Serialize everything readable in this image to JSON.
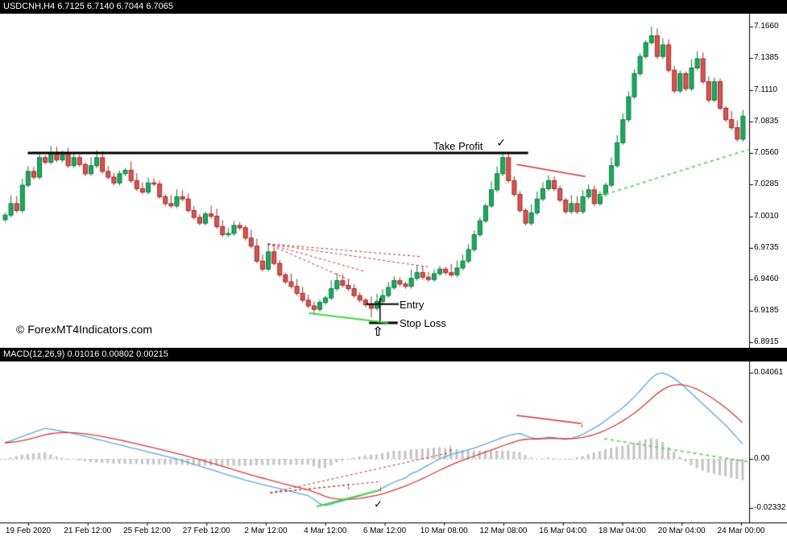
{
  "price_pane": {
    "header": "USDCNH,H4  6.7125 6.7140 6.7044 6.7065",
    "watermark": "© ForexMT4Indicators.com",
    "axis_labels": [
      "7.1660",
      "7.1385",
      "7.1110",
      "7.0835",
      "7.0560",
      "7.0285",
      "7.0010",
      "6.9735",
      "6.9460",
      "6.9185",
      "6.8915"
    ]
  },
  "macd_pane": {
    "header": "MACD(12,26,9)  0.01016 0.00802 0.00215",
    "axis_labels": [
      "0.04061",
      "0.00",
      "-0.02332"
    ]
  },
  "time_axis": {
    "labels": [
      "19 Feb 2020",
      "21 Feb 12:00",
      "25 Feb 12:00",
      "27 Feb 12:00",
      "2 Mar 12:00",
      "4 Mar 12:00",
      "6 Mar 12:00",
      "10 Mar 08:00",
      "12 Mar 08:00",
      "16 Mar 04:00",
      "18 Mar 04:00",
      "20 Mar 04:00",
      "24 Mar 00:00"
    ]
  },
  "annotations": {
    "take_profit": "Take Profit",
    "entry": "Entry",
    "stop_loss": "Stop Loss"
  },
  "colors": {
    "bull": "#1caa5c",
    "bull_border": "#0c7a40",
    "bear": "#d9534f",
    "bear_border": "#9e2b2b",
    "macd_line": "#5aa7de",
    "signal_line": "#d23b3b",
    "histogram": "#c4c4c4",
    "zero_line": "#bbbbbb",
    "divergence_red": "#c03030",
    "divergence_green": "#44d344",
    "projection_green": "#66dd66",
    "annotation": "#000000"
  },
  "chart_data": [
    {
      "type": "candlestick",
      "title": "USDCNH H4",
      "y_axis": {
        "min": 6.8915,
        "max": 7.166,
        "ticks": [
          7.166,
          7.1385,
          7.111,
          7.0835,
          7.056,
          7.0285,
          7.001,
          6.9735,
          6.946,
          6.9185,
          6.8915
        ]
      },
      "first_open": 6.998,
      "closes": [
        7.002,
        7.012,
        7.006,
        7.028,
        7.04,
        7.035,
        7.052,
        7.048,
        7.055,
        7.05,
        7.056,
        7.045,
        7.052,
        7.046,
        7.038,
        7.045,
        7.052,
        7.04,
        7.035,
        7.03,
        7.038,
        7.041,
        7.032,
        7.025,
        7.022,
        7.03,
        7.029,
        7.018,
        7.012,
        7.01,
        7.018,
        7.016,
        7.006,
        7.0,
        6.995,
        7.003,
        7.001,
        6.992,
        6.985,
        6.986,
        6.993,
        6.991,
        6.982,
        6.975,
        6.962,
        6.955,
        6.97,
        6.96,
        6.95,
        6.944,
        6.94,
        6.934,
        6.928,
        6.923,
        6.92,
        6.926,
        6.93,
        6.938,
        6.945,
        6.941,
        6.938,
        6.932,
        6.928,
        6.924,
        6.921,
        6.927,
        6.932,
        6.939,
        6.945,
        6.942,
        6.94,
        6.947,
        6.952,
        6.948,
        6.946,
        6.951,
        6.955,
        6.952,
        6.95,
        6.956,
        6.962,
        6.972,
        6.985,
        6.997,
        7.01,
        7.024,
        7.038,
        7.052,
        7.032,
        7.02,
        7.006,
        6.995,
        7.004,
        7.016,
        7.025,
        7.032,
        7.025,
        7.015,
        7.005,
        7.012,
        7.005,
        7.018,
        7.024,
        7.012,
        7.02,
        7.028,
        7.045,
        7.065,
        7.085,
        7.105,
        7.125,
        7.14,
        7.152,
        7.158,
        7.14,
        7.15,
        7.128,
        7.11,
        7.125,
        7.112,
        7.13,
        7.138,
        7.118,
        7.102,
        7.118,
        7.095,
        7.085,
        7.078,
        7.068,
        7.088
      ],
      "high_overrides": {
        "10": 7.058,
        "46": 6.977,
        "87": 7.057,
        "113": 7.166
      },
      "low_overrides": {
        "54": 6.915,
        "64": 6.913
      },
      "trade_levels": {
        "take_profit": 7.056,
        "entry": 6.9245,
        "stop_loss": 6.9083
      }
    },
    {
      "type": "line",
      "title": "MACD(12,26,9)",
      "current_values": {
        "macd": 0.01016,
        "signal": 0.00802,
        "histogram": 0.00215
      },
      "y_ticks": [
        0.04061,
        0,
        -0.02332
      ],
      "signal_ema_period": 9,
      "macd_values": [
        0.0076,
        0.0085,
        0.0095,
        0.0105,
        0.0115,
        0.0125,
        0.0134,
        0.0144,
        0.014,
        0.0135,
        0.013,
        0.0125,
        0.012,
        0.0113,
        0.0107,
        0.01,
        0.0093,
        0.0087,
        0.008,
        0.0073,
        0.0067,
        0.006,
        0.0053,
        0.0047,
        0.004,
        0.0033,
        0.0027,
        0.002,
        0.0013,
        0.0007,
        0.0,
        -0.0008,
        -0.0017,
        -0.0025,
        -0.0033,
        -0.0042,
        -0.005,
        -0.0058,
        -0.0067,
        -0.0075,
        -0.0083,
        -0.0092,
        -0.01,
        -0.0107,
        -0.0113,
        -0.012,
        -0.0127,
        -0.0133,
        -0.014,
        -0.0147,
        -0.0153,
        -0.016,
        -0.0167,
        -0.0173,
        -0.019,
        -0.021,
        -0.022,
        -0.0215,
        -0.0205,
        -0.02,
        -0.019,
        -0.0183,
        -0.0175,
        -0.0166,
        -0.0158,
        -0.015,
        -0.0138,
        -0.0124,
        -0.011,
        -0.01,
        -0.009,
        -0.007,
        -0.006,
        -0.0045,
        -0.003,
        -0.0015,
        0.0,
        0.001,
        0.002,
        0.0028,
        0.0035,
        0.0043,
        0.005,
        0.006,
        0.007,
        0.008,
        0.009,
        0.01,
        0.011,
        0.0115,
        0.012,
        0.011,
        0.01,
        0.0095,
        0.0098,
        0.0102,
        0.01,
        0.0095,
        0.0092,
        0.0096,
        0.0105,
        0.0115,
        0.013,
        0.0145,
        0.016,
        0.018,
        0.02,
        0.022,
        0.024,
        0.0265,
        0.029,
        0.032,
        0.035,
        0.038,
        0.04,
        0.0406,
        0.0395,
        0.038,
        0.036,
        0.0335,
        0.031,
        0.0285,
        0.026,
        0.0235,
        0.021,
        0.0185,
        0.016,
        0.013,
        0.01,
        0.007
      ]
    }
  ],
  "drawings": {
    "lines": [
      {
        "name": "take-profit-line",
        "pane": "price",
        "color": "#000000",
        "width": 3,
        "from": [
          4,
          7.056
        ],
        "to": [
          91.5,
          7.056
        ]
      },
      {
        "name": "entry-line",
        "pane": "price",
        "color": "#000000",
        "width": 2,
        "from": [
          63.2,
          6.9245
        ],
        "to": [
          68.9,
          6.9245
        ]
      },
      {
        "name": "stop-loss-line",
        "pane": "price",
        "color": "#000000",
        "width": 3,
        "from": [
          63.7,
          6.9083
        ],
        "to": [
          68.7,
          6.9083
        ]
      },
      {
        "name": "entry-connector-line",
        "pane": "price",
        "color": "#000000",
        "width": 1.5,
        "from": [
          65.6,
          6.93
        ],
        "to": [
          65.6,
          6.9083
        ]
      },
      {
        "name": "price-divergence-support",
        "pane": "price",
        "color": "#44d344",
        "width": 2,
        "from": [
          53.2,
          6.9167
        ],
        "to": [
          67,
          6.9083
        ]
      },
      {
        "name": "price-projection",
        "pane": "price",
        "color": "#66dd66",
        "width": 2,
        "dash": [
          4,
          4
        ],
        "from": [
          104,
          7.0185
        ],
        "to": [
          130,
          7.059
        ]
      },
      {
        "name": "price-resistance",
        "pane": "price",
        "color": "#cc3333",
        "width": 1.5,
        "from": [
          89.5,
          7.046
        ],
        "to": [
          101.5,
          7.0355
        ]
      },
      {
        "name": "price-fan-1",
        "pane": "price",
        "color": "#c03030",
        "width": 1,
        "dash": [
          3,
          3
        ],
        "from": [
          46,
          6.977
        ],
        "to": [
          60.5,
          6.945
        ]
      },
      {
        "name": "price-fan-2",
        "pane": "price",
        "color": "#c03030",
        "width": 1,
        "dash": [
          3,
          3
        ],
        "from": [
          46,
          6.977
        ],
        "to": [
          63,
          6.953
        ]
      },
      {
        "name": "price-fan-3",
        "pane": "price",
        "color": "#c03030",
        "width": 1,
        "dash": [
          3,
          3
        ],
        "from": [
          46,
          6.977
        ],
        "to": [
          72.5,
          6.966
        ]
      },
      {
        "name": "price-fan-4",
        "pane": "price",
        "color": "#c03030",
        "width": 1,
        "dash": [
          3,
          3
        ],
        "from": [
          46,
          6.977
        ],
        "to": [
          74,
          6.957
        ]
      },
      {
        "name": "macd-fan-1",
        "pane": "macd",
        "color": "#c03030",
        "width": 1,
        "dash": [
          3,
          3
        ],
        "from": [
          46.4,
          -0.016
        ],
        "to": [
          60.1,
          -0.0122
        ]
      },
      {
        "name": "macd-fan-2",
        "pane": "macd",
        "color": "#c03030",
        "width": 1,
        "dash": [
          3,
          3
        ],
        "from": [
          46.4,
          -0.016
        ],
        "to": [
          65.7,
          -0.0107
        ]
      },
      {
        "name": "macd-fan-3",
        "pane": "macd",
        "color": "#c03030",
        "width": 1,
        "dash": [
          3,
          3
        ],
        "from": [
          46.4,
          -0.016
        ],
        "to": [
          77.9,
          0.003
        ]
      },
      {
        "name": "macd-divergence-support",
        "pane": "macd",
        "color": "#44d344",
        "width": 2,
        "from": [
          54.5,
          -0.0225
        ],
        "to": [
          65.5,
          -0.0148
        ]
      },
      {
        "name": "macd-projection",
        "pane": "macd",
        "color": "#66dd66",
        "width": 2,
        "dash": [
          4,
          4
        ],
        "from": [
          104.8,
          0.0095
        ],
        "to": [
          130,
          -0.0014
        ]
      },
      {
        "name": "macd-trendline",
        "pane": "macd",
        "color": "#cc3333",
        "width": 1.5,
        "from": [
          89.5,
          0.0205
        ],
        "to": [
          100.7,
          0.0167
        ]
      }
    ],
    "markers": [
      {
        "name": "take-profit-check-icon",
        "pane": "price",
        "glyph": "✓",
        "color": "#000000",
        "size": 14,
        "at": [
          86.8,
          7.065
        ]
      },
      {
        "name": "stop-loss-arrow-icon",
        "pane": "price",
        "glyph": "⇧",
        "color": "#000000",
        "size": 16,
        "at": [
          65.2,
          6.9
        ]
      },
      {
        "name": "macd-check-icon",
        "pane": "macd",
        "glyph": "✓",
        "color": "#000000",
        "size": 13,
        "at": [
          65.3,
          -0.0213
        ]
      },
      {
        "name": "sell-arrow-icon",
        "pane": "macd",
        "glyph": "↓",
        "color": "#cc2222",
        "size": 12,
        "at": [
          60.1,
          -0.0125
        ]
      },
      {
        "name": "sell-arrow-icon",
        "pane": "macd",
        "glyph": "↓",
        "color": "#cc2222",
        "size": 12,
        "at": [
          65.7,
          -0.0136
        ]
      },
      {
        "name": "sell-arrow-icon",
        "pane": "macd",
        "glyph": "↓",
        "color": "#cc2222",
        "size": 12,
        "at": [
          77.9,
          0.0052
        ]
      },
      {
        "name": "sell-arrow-icon",
        "pane": "macd",
        "glyph": "↓",
        "color": "#cc2222",
        "size": 12,
        "at": [
          100.9,
          0.0168
        ]
      }
    ]
  }
}
